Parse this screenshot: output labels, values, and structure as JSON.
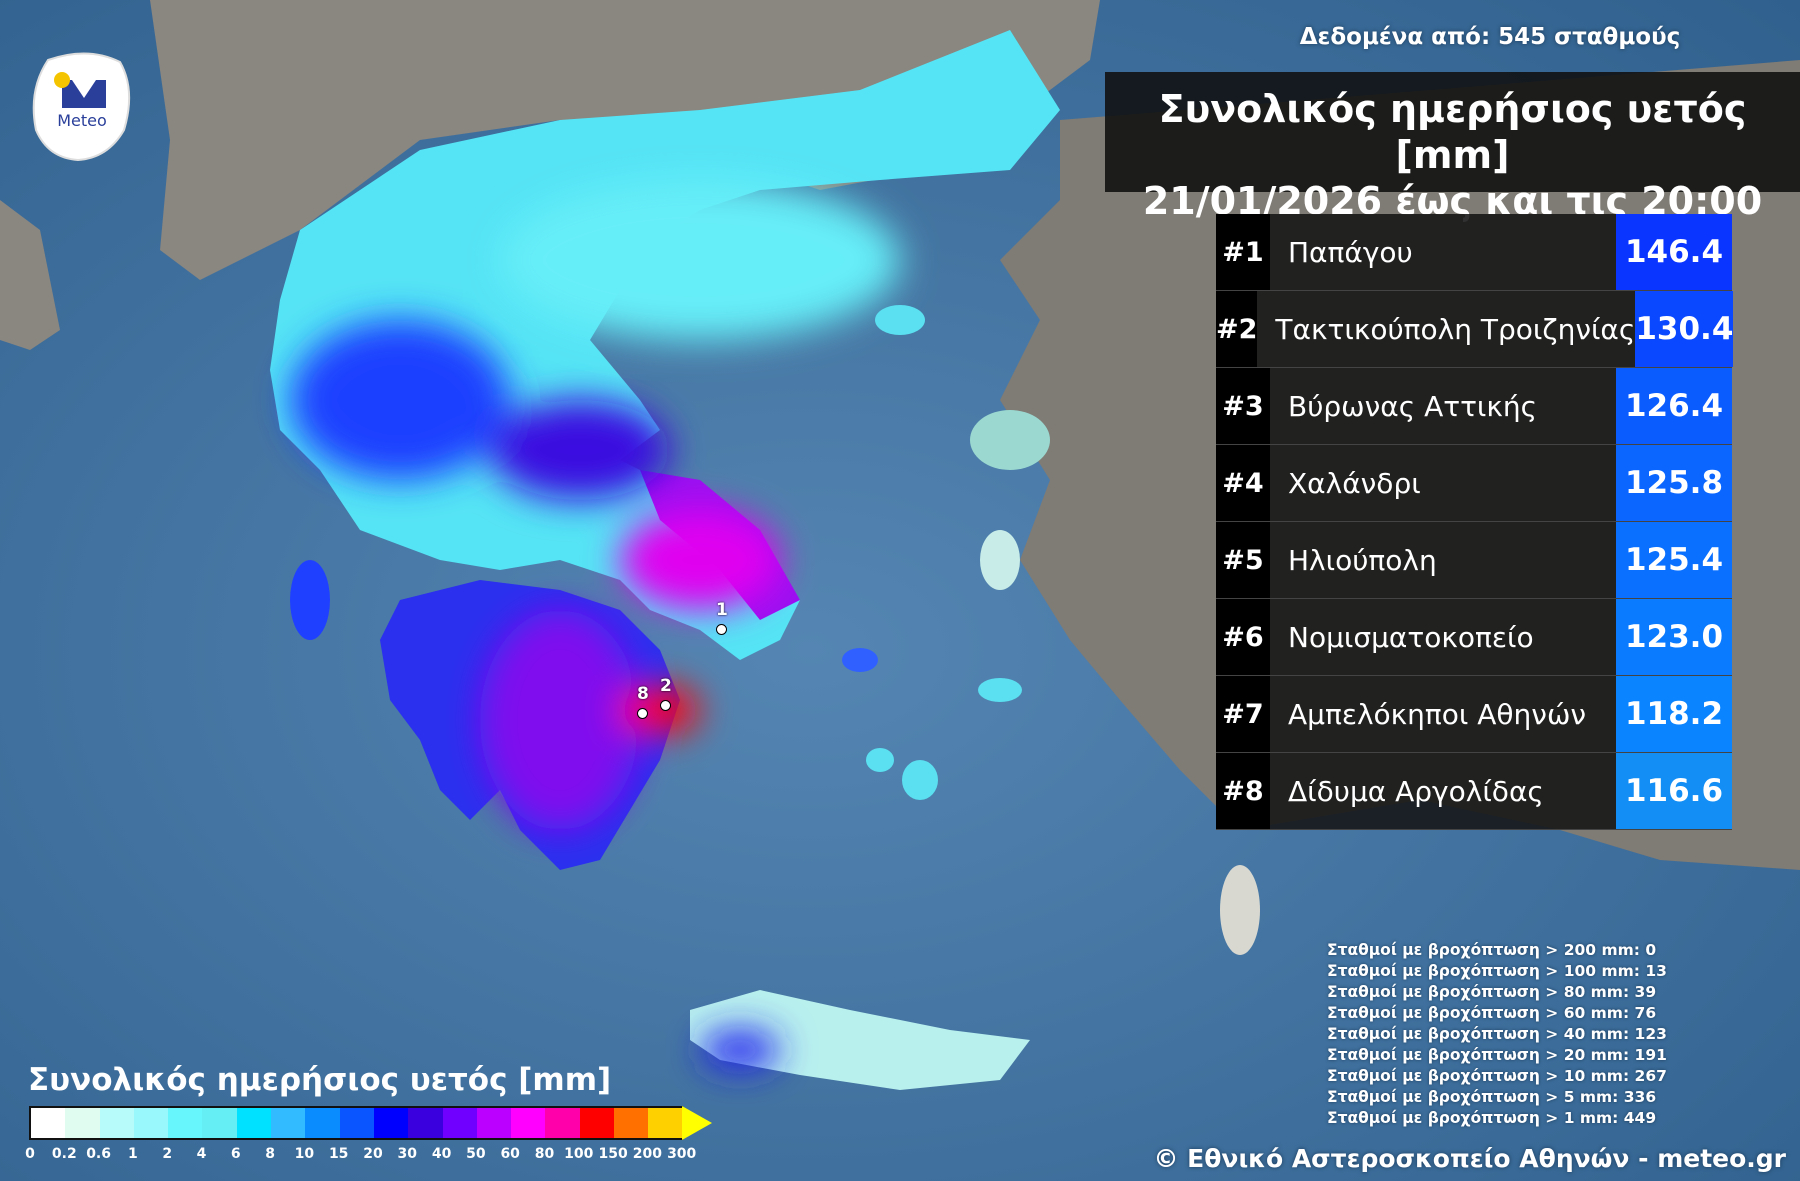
{
  "header": {
    "source": "Δεδομένα από: 545 σταθμούς",
    "title_line1": "Συνολικός ημερήσιος υετός [mm]",
    "title_line2": "21/01/2026 έως και τις 20:00"
  },
  "logo": {
    "text": "Meteo",
    "colors": {
      "blue": "#2a3f9a",
      "sun": "#f5c400"
    }
  },
  "ranking": [
    {
      "rank": "#1",
      "station": "Παπάγου",
      "value": "146.4",
      "color": "#0a34ff"
    },
    {
      "rank": "#2",
      "station": "Τακτικούπολη Τροιζηνίας",
      "value": "130.4",
      "color": "#0a48ff"
    },
    {
      "rank": "#3",
      "station": "Βύρωνας Αττικής",
      "value": "126.4",
      "color": "#0a5cff"
    },
    {
      "rank": "#4",
      "station": "Χαλάνδρι",
      "value": "125.8",
      "color": "#0a66ff"
    },
    {
      "rank": "#5",
      "station": "Ηλιούπολη",
      "value": "125.4",
      "color": "#0a70ff"
    },
    {
      "rank": "#6",
      "station": "Νομισματοκοπείο",
      "value": "123.0",
      "color": "#0a7aff"
    },
    {
      "rank": "#7",
      "station": "Αμπελόκηποι Αθηνών",
      "value": "118.2",
      "color": "#0a84ff"
    },
    {
      "rank": "#8",
      "station": "Δίδυμα Αργολίδας",
      "value": "116.6",
      "color": "#128ef5"
    }
  ],
  "stats": [
    "Σταθμοί με βροχόπτωση > 200 mm: 0",
    "Σταθμοί με βροχόπτωση > 100 mm: 13",
    "Σταθμοί με βροχόπτωση > 80 mm: 39",
    "Σταθμοί με βροχόπτωση > 60 mm: 76",
    "Σταθμοί με βροχόπτωση > 40 mm: 123",
    "Σταθμοί με βροχόπτωση > 20 mm: 191",
    "Σταθμοί με βροχόπτωση > 10 mm: 267",
    "Σταθμοί με βροχόπτωση > 5 mm: 336",
    "Σταθμοί με βροχόπτωση > 1 mm: 449"
  ],
  "legend": {
    "title": "Συνολικός ημερήσιος υετός [mm]",
    "ticks": [
      "0",
      "0.2",
      "0.6",
      "1",
      "2",
      "4",
      "6",
      "8",
      "10",
      "15",
      "20",
      "30",
      "40",
      "50",
      "60",
      "80",
      "100",
      "150",
      "200",
      "300"
    ],
    "colors": [
      "#ffffff",
      "#e0fbf0",
      "#b8fbfb",
      "#98f8fb",
      "#66f6fb",
      "#66eef5",
      "#00e0ff",
      "#33bbff",
      "#0a8cff",
      "#0a55ff",
      "#0000ff",
      "#3a00dd",
      "#7000ff",
      "#bb00ff",
      "#ff00ff",
      "#ff00aa",
      "#ff0000",
      "#ff7000",
      "#ffd000",
      "#ffff00"
    ]
  },
  "markers": [
    "1",
    "2",
    "8"
  ],
  "footer": {
    "copyright": "© Εθνικό Αστεροσκοπείο Αθηνών - meteo.gr"
  }
}
